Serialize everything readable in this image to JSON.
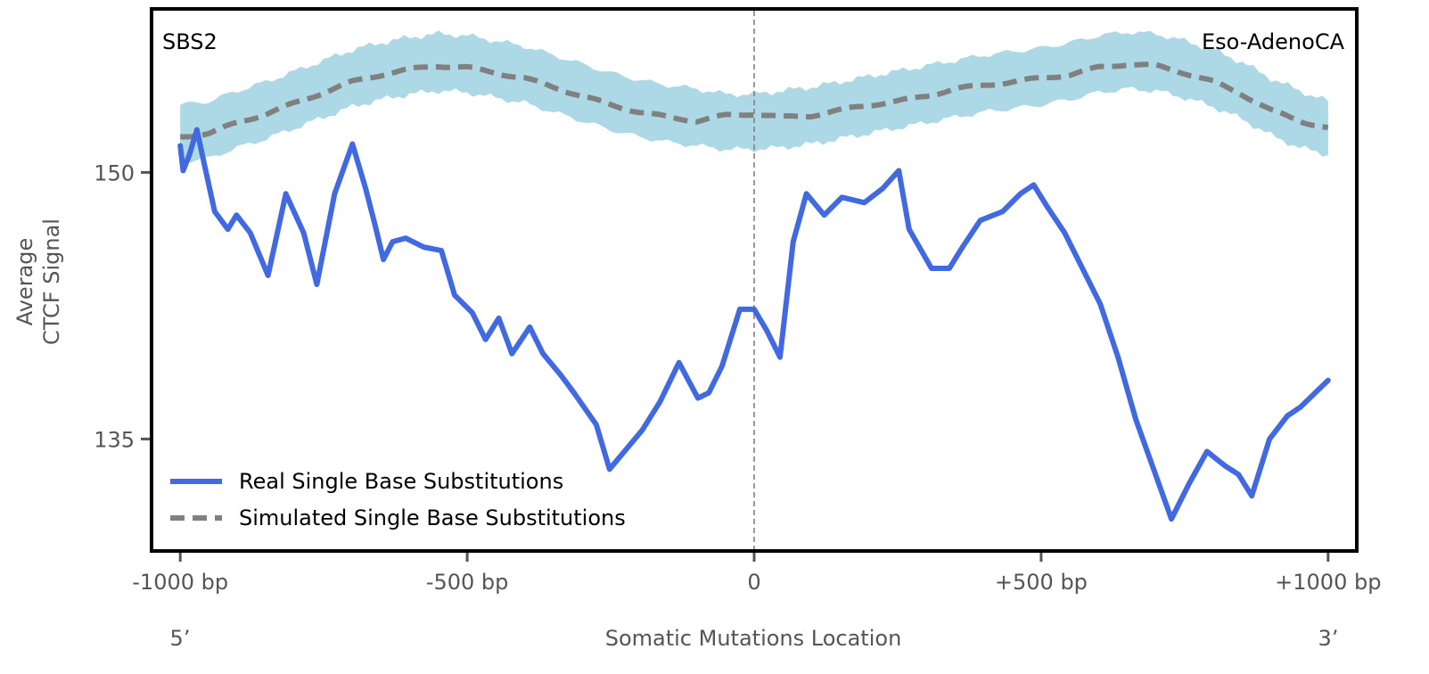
{
  "chart_data": {
    "type": "line",
    "title": "",
    "annotations": {
      "top_left": "SBS2",
      "top_right": "Eso-AdenoCA",
      "left_end": "5’",
      "right_end": "3’"
    },
    "xlabel": "Somatic Mutations Location",
    "ylabel_lines": [
      "Average",
      "CTCF Signal"
    ],
    "xlim": [
      -1050,
      1050
    ],
    "ylim": [
      128.7,
      159.2
    ],
    "x_ticks": [
      {
        "value": -1000,
        "label": "-1000 bp"
      },
      {
        "value": -500,
        "label": "-500 bp"
      },
      {
        "value": 0,
        "label": "0"
      },
      {
        "value": 500,
        "label": "+500 bp"
      },
      {
        "value": 1000,
        "label": "+1000 bp"
      }
    ],
    "y_ticks": [
      {
        "value": 150,
        "label": "150"
      },
      {
        "value": 135,
        "label": "135"
      }
    ],
    "grid": false,
    "center_line": {
      "x": 0,
      "style": "dashed",
      "color": "#808080"
    },
    "legend": {
      "position": "lower-left",
      "entries": [
        {
          "label": "Real Single Base Substitutions",
          "color": "#4169e1",
          "style": "solid"
        },
        {
          "label": "Simulated Single Base Substitutions",
          "color": "#808080",
          "style": "dashed"
        }
      ]
    },
    "colors": {
      "real": "#4169e1",
      "simulated": "#808080",
      "band": "#add8e6",
      "frame": "#000000",
      "axis_text": "#555555"
    },
    "series": [
      {
        "name": "Real Single Base Substitutions",
        "x": [
          -1000,
          -995,
          -984,
          -971,
          -959,
          -940,
          -917,
          -902,
          -878,
          -847,
          -816,
          -785,
          -762,
          -731,
          -700,
          -677,
          -661,
          -646,
          -630,
          -607,
          -576,
          -545,
          -522,
          -491,
          -468,
          -445,
          -422,
          -391,
          -368,
          -337,
          -314,
          -275,
          -252,
          -195,
          -164,
          -131,
          -98,
          -79,
          -56,
          -25,
          0,
          22,
          45,
          68,
          91,
          122,
          153,
          192,
          224,
          252,
          270,
          309,
          340,
          363,
          394,
          433,
          464,
          487,
          510,
          541,
          572,
          603,
          634,
          665,
          696,
          727,
          758,
          789,
          820,
          844,
          867,
          898,
          929,
          952,
          1000
        ],
        "values": [
          151.5,
          150.1,
          151.0,
          152.4,
          150.6,
          147.8,
          146.8,
          147.6,
          146.6,
          144.2,
          148.8,
          146.6,
          143.7,
          148.8,
          151.6,
          149.1,
          147.1,
          145.1,
          146.1,
          146.3,
          145.8,
          145.6,
          143.1,
          142.1,
          140.6,
          141.8,
          139.8,
          141.3,
          139.8,
          138.6,
          137.6,
          135.8,
          133.3,
          135.5,
          137.1,
          139.3,
          137.3,
          137.6,
          139.1,
          142.3,
          142.3,
          141.1,
          139.6,
          146.1,
          148.8,
          147.6,
          148.6,
          148.3,
          149.1,
          150.1,
          146.8,
          144.6,
          144.6,
          145.8,
          147.3,
          147.8,
          148.8,
          149.3,
          148.1,
          146.6,
          144.6,
          142.6,
          139.6,
          136.1,
          133.3,
          130.5,
          132.5,
          134.3,
          133.5,
          133.0,
          131.8,
          135.0,
          136.3,
          136.8,
          138.3
        ]
      },
      {
        "name": "Simulated Single Base Substitutions",
        "x": [
          -1000,
          -950,
          -900,
          -850,
          -800,
          -750,
          -700,
          -650,
          -600,
          -550,
          -500,
          -450,
          -400,
          -350,
          -300,
          -250,
          -200,
          -150,
          -100,
          -50,
          0,
          50,
          100,
          150,
          200,
          250,
          300,
          350,
          400,
          450,
          500,
          550,
          600,
          650,
          700,
          750,
          800,
          850,
          900,
          950,
          1000
        ],
        "values": [
          152.0,
          152.2,
          152.8,
          153.3,
          153.9,
          154.5,
          155.1,
          155.5,
          155.8,
          156.0,
          155.9,
          155.6,
          155.3,
          154.8,
          154.3,
          153.8,
          153.4,
          153.1,
          152.9,
          153.2,
          153.3,
          153.1,
          153.2,
          153.5,
          153.8,
          154.0,
          154.3,
          154.7,
          154.9,
          155.1,
          155.3,
          155.5,
          155.9,
          156.1,
          156.0,
          155.6,
          155.1,
          154.4,
          153.5,
          152.9,
          152.5
        ],
        "band_lower": [
          150.6,
          150.8,
          151.4,
          151.9,
          152.5,
          153.1,
          153.7,
          154.1,
          154.4,
          154.6,
          154.5,
          154.2,
          153.9,
          153.4,
          152.9,
          152.4,
          152.0,
          151.7,
          151.5,
          151.3,
          151.3,
          151.4,
          151.6,
          151.9,
          152.2,
          152.5,
          152.8,
          153.1,
          153.4,
          153.6,
          153.8,
          154.1,
          154.5,
          154.7,
          154.6,
          154.2,
          153.7,
          153.0,
          152.1,
          151.4,
          151.0
        ],
        "band_upper": [
          153.8,
          154.0,
          154.6,
          155.1,
          155.7,
          156.3,
          156.9,
          157.3,
          157.6,
          157.8,
          157.7,
          157.4,
          157.1,
          156.6,
          156.1,
          155.6,
          155.2,
          154.9,
          154.7,
          154.4,
          154.4,
          154.6,
          154.8,
          155.1,
          155.4,
          155.7,
          156.0,
          156.3,
          156.6,
          156.8,
          157.0,
          157.3,
          157.7,
          157.9,
          157.8,
          157.4,
          156.9,
          156.2,
          155.3,
          154.6,
          154.0
        ]
      }
    ]
  }
}
